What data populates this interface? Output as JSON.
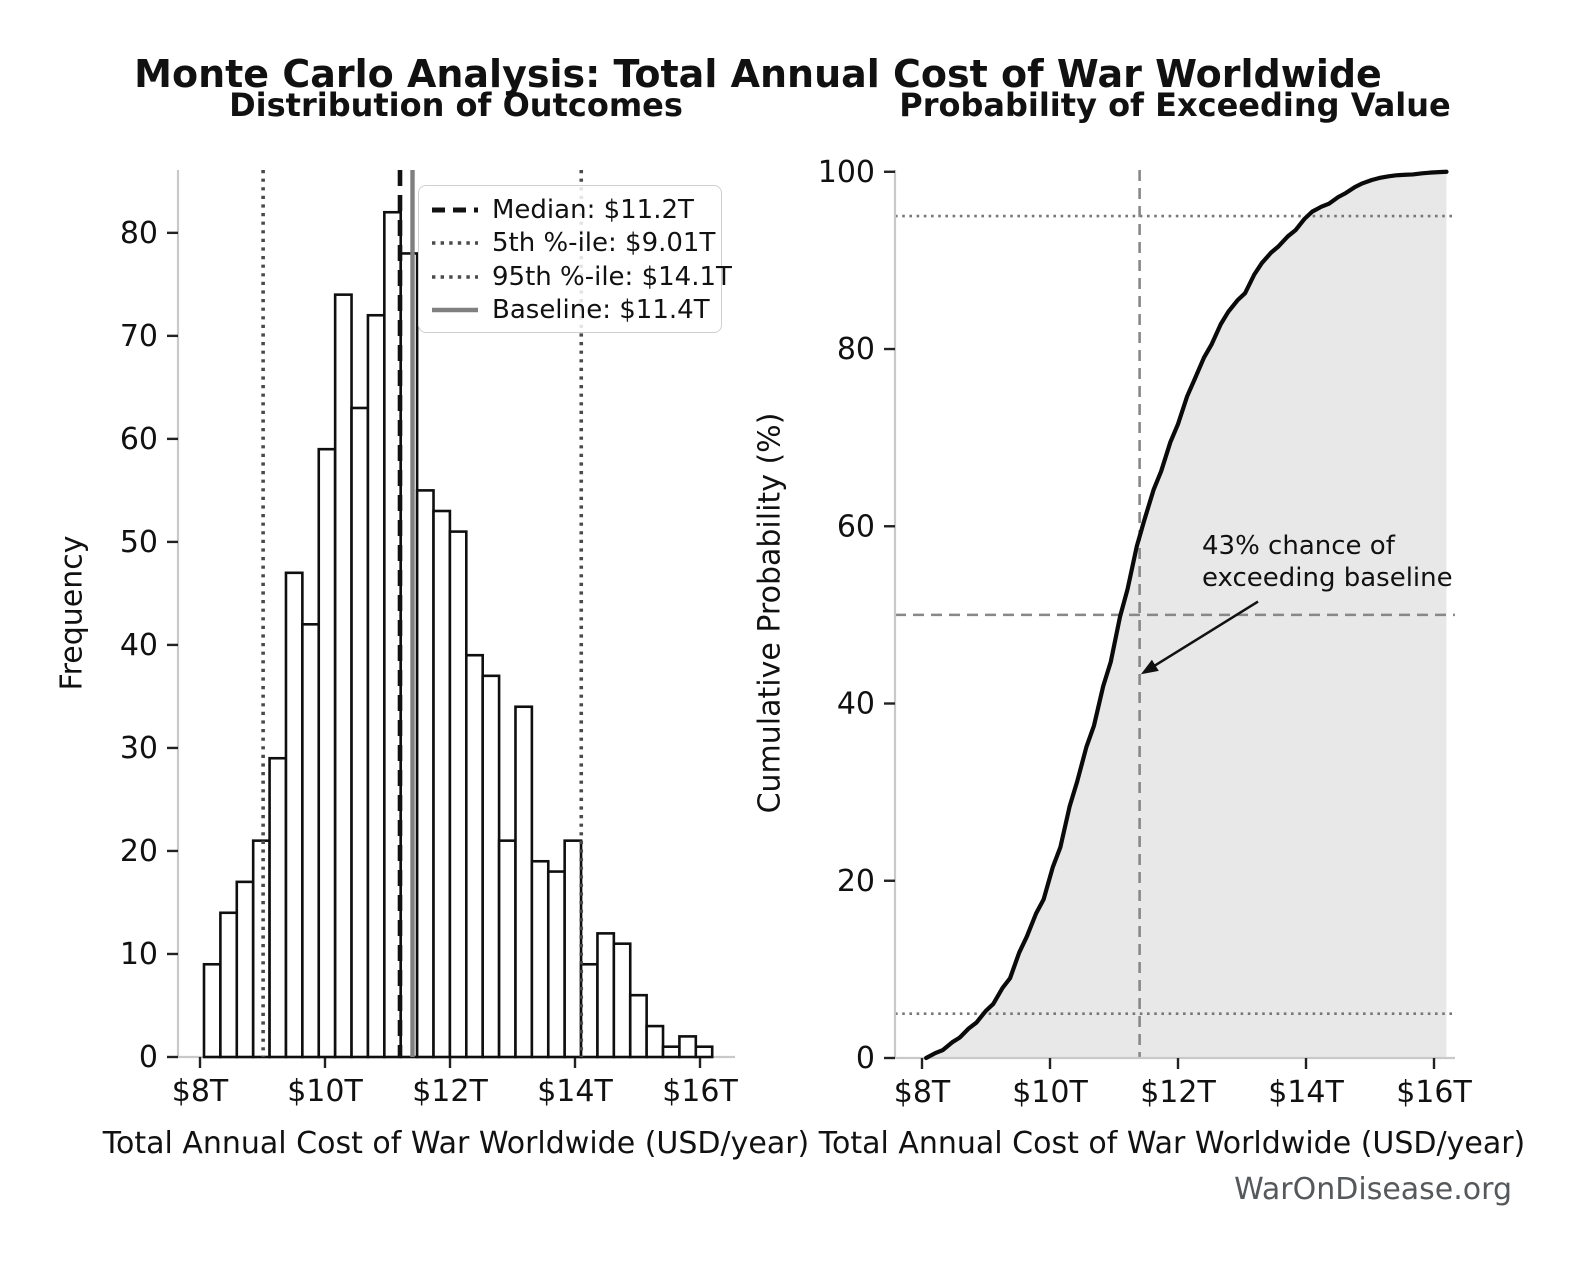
{
  "header": {
    "title": "Monte Carlo Analysis: Total Annual Cost of War Worldwide"
  },
  "footer": {
    "credit": "WarOnDisease.org"
  },
  "chart_data": [
    {
      "type": "bar",
      "name": "outcome-distribution-histogram",
      "title": "Distribution of Outcomes",
      "xlabel": "Total Annual Cost of War Worldwide (USD/year)",
      "ylabel": "Frequency",
      "bin_start": 8.064,
      "bin_width": 0.2623,
      "values": [
        9,
        14,
        17,
        21,
        29,
        47,
        42,
        59,
        74,
        63,
        72,
        82,
        78,
        55,
        53,
        51,
        39,
        37,
        21,
        34,
        19,
        18,
        21,
        9,
        12,
        11,
        6,
        3,
        1,
        2,
        1
      ],
      "total_samples": 1000,
      "xlim": [
        7.648,
        16.56
      ],
      "ylim": [
        0,
        86.1
      ],
      "x_ticks": {
        "values": [
          8,
          10,
          12,
          14,
          16
        ],
        "labels": [
          "$8T",
          "$10T",
          "$12T",
          "$14T",
          "$16T"
        ]
      },
      "y_ticks": {
        "values": [
          0,
          10,
          20,
          30,
          40,
          50,
          60,
          70,
          80
        ]
      },
      "bar_fill": "#ffffff",
      "bar_edge": "#0f0f0f",
      "reference_lines": [
        {
          "name": "median",
          "value": 11.2,
          "label": "Median: $11.2T",
          "style": "dashed",
          "color": "#111111",
          "width": 4.6
        },
        {
          "name": "p5",
          "value": 9.01,
          "label": "5th %-ile: $9.01T",
          "style": "dotted",
          "color": "#4a4a4a",
          "width": 3.6
        },
        {
          "name": "p95",
          "value": 14.1,
          "label": "95th %-ile: $14.1T",
          "style": "dotted",
          "color": "#4a4a4a",
          "width": 3.6
        },
        {
          "name": "baseline",
          "value": 11.4,
          "label": "Baseline: $11.4T",
          "style": "solid",
          "color": "#808080",
          "width": 4.4
        }
      ],
      "legend_position": "upper right",
      "grid": false
    },
    {
      "type": "line",
      "name": "cumulative-probability-curve",
      "title": "Probability of Exceeding Value",
      "xlabel": "Total Annual Cost of War Worldwide (USD/year)",
      "ylabel": "Cumulative Probability (%)",
      "xlim": [
        7.578,
        16.328
      ],
      "ylim": [
        0,
        100.2
      ],
      "x_ticks": {
        "values": [
          8,
          10,
          12,
          14,
          16
        ],
        "labels": [
          "$8T",
          "$10T",
          "$12T",
          "$14T",
          "$16T"
        ]
      },
      "y_ticks": {
        "values": [
          0,
          20,
          40,
          60,
          80,
          100
        ]
      },
      "curve_source": "cumulative_percent_of_histogram_0",
      "cumulative_percent": [
        0,
        0.9,
        2.3,
        4.0,
        6.1,
        9.0,
        13.7,
        17.9,
        23.8,
        31.2,
        37.5,
        44.7,
        52.9,
        60.7,
        66.2,
        71.5,
        76.6,
        80.5,
        84.2,
        86.3,
        89.7,
        91.6,
        93.4,
        95.5,
        96.4,
        97.6,
        98.7,
        99.3,
        99.6,
        99.7,
        99.9,
        100.0
      ],
      "curve_color": "#0a0a0a",
      "fill_color": "#e8e8e8",
      "hlines": [
        {
          "name": "p5-line",
          "value": 5,
          "style": "dotted",
          "color": "#777777",
          "width": 2.6
        },
        {
          "name": "p95-line",
          "value": 95,
          "style": "dotted",
          "color": "#777777",
          "width": 2.6
        },
        {
          "name": "median-line",
          "value": 50,
          "style": "dashed",
          "color": "#888888",
          "width": 2.6
        }
      ],
      "vlines": [
        {
          "name": "baseline-line",
          "value": 11.4,
          "style": "dashed",
          "color": "#888888",
          "width": 2.6
        }
      ],
      "annotation": {
        "line1": "43% chance of",
        "line2": "exceeding baseline",
        "arrow_from_data": [
          13.25,
          51.5
        ],
        "arrow_to_data": [
          11.42,
          43.3
        ]
      },
      "grid": false
    }
  ]
}
